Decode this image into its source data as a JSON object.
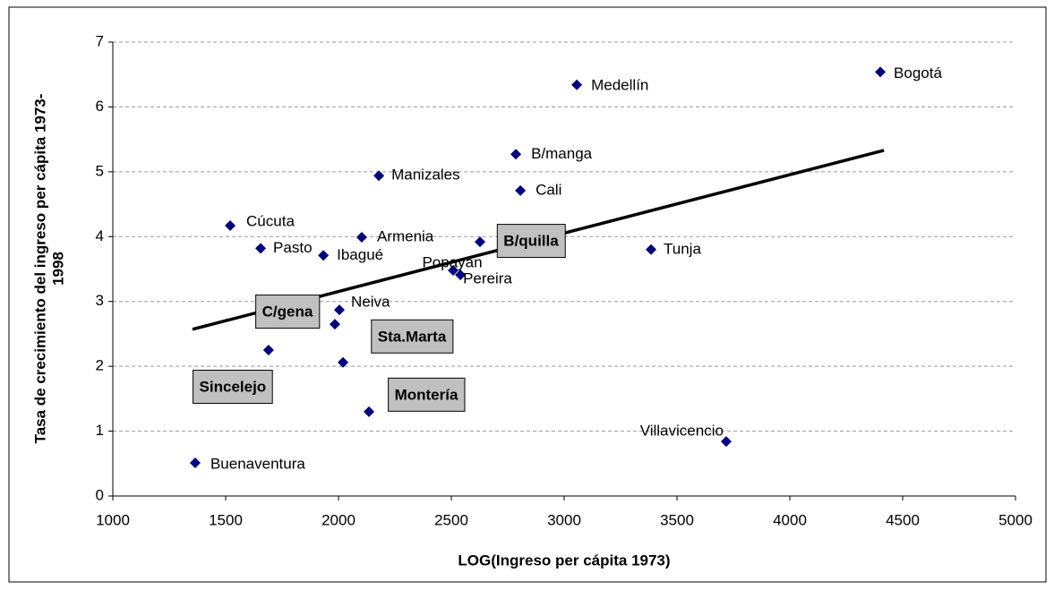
{
  "chart_data": {
    "type": "scatter",
    "xlabel": "LOG(Ingreso per cápita 1973)",
    "ylabel": [
      "Tasa de crecimiento del ingreso per cápita 1973-",
      "1998"
    ],
    "xlim": [
      1000,
      5000
    ],
    "xticks": [
      1000,
      1500,
      2000,
      2500,
      3000,
      3500,
      4000,
      4500,
      5000
    ],
    "ylim": [
      0,
      7
    ],
    "yticks": [
      0,
      1,
      2,
      3,
      4,
      5,
      6,
      7
    ],
    "grid": true,
    "color": "#000080",
    "x": [
      4401,
      3056,
      2786,
      2806,
      2179,
      1520,
      1655,
      1933,
      2103,
      2627,
      2508,
      2540,
      3385,
      2004,
      1984,
      1690,
      2020,
      2135,
      3718,
      1365
    ],
    "y": [
      6.54,
      6.34,
      5.27,
      4.71,
      4.94,
      4.17,
      3.82,
      3.71,
      3.99,
      3.92,
      3.48,
      3.41,
      3.8,
      2.87,
      2.65,
      2.25,
      2.06,
      1.3,
      0.84,
      0.51
    ],
    "point_labels": [
      "Bogotá",
      "Medellín",
      "B/manga",
      "Cali",
      "Manizales",
      "Cúcuta",
      "Pasto",
      "Ibagué",
      "Armenia",
      "B/quilla",
      "Popayán",
      "Pereira",
      "Tunja",
      "Neiva",
      "C/gena",
      "Sincelejo",
      "Sta.Marta",
      "Montería",
      "Villavicencio",
      "Buenaventura"
    ],
    "boxed_labels": [
      false,
      false,
      false,
      false,
      false,
      false,
      false,
      false,
      false,
      true,
      false,
      false,
      false,
      false,
      true,
      true,
      true,
      true,
      false,
      false
    ],
    "trendline": {
      "x": [
        1353,
        4417
      ],
      "y": [
        2.57,
        5.33
      ],
      "color": "#000000"
    }
  }
}
